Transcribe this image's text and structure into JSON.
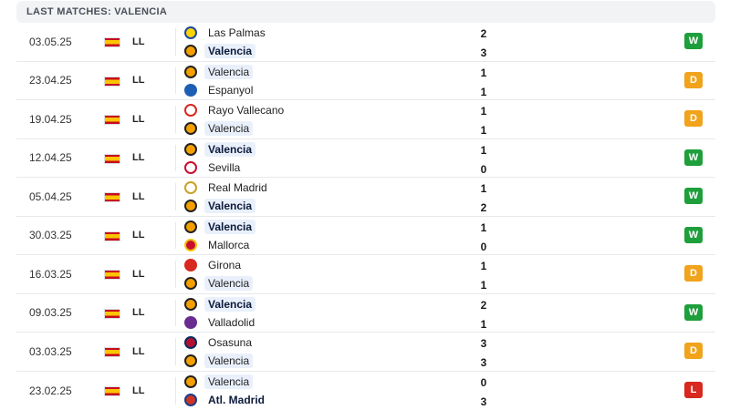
{
  "header": {
    "title": "LAST MATCHES: VALENCIA"
  },
  "colors": {
    "win": "#1e9f3c",
    "draw": "#f0a31b",
    "loss": "#d8281f",
    "highlight": "#e9f0fb"
  },
  "matches": [
    {
      "date": "03.05.25",
      "league": "LL",
      "home": {
        "name": "Las Palmas",
        "crest": "las-palmas-crest",
        "score": "2",
        "bold": false,
        "highlight": false
      },
      "away": {
        "name": "Valencia",
        "crest": "valencia-crest",
        "score": "3",
        "bold": true,
        "highlight": true
      },
      "result": "W"
    },
    {
      "date": "23.04.25",
      "league": "LL",
      "home": {
        "name": "Valencia",
        "crest": "valencia-crest",
        "score": "1",
        "bold": false,
        "highlight": true
      },
      "away": {
        "name": "Espanyol",
        "crest": "espanyol-crest",
        "score": "1",
        "bold": false,
        "highlight": false
      },
      "result": "D"
    },
    {
      "date": "19.04.25",
      "league": "LL",
      "home": {
        "name": "Rayo Vallecano",
        "crest": "rayo-vallecano-crest",
        "score": "1",
        "bold": false,
        "highlight": false
      },
      "away": {
        "name": "Valencia",
        "crest": "valencia-crest",
        "score": "1",
        "bold": false,
        "highlight": true
      },
      "result": "D"
    },
    {
      "date": "12.04.25",
      "league": "LL",
      "home": {
        "name": "Valencia",
        "crest": "valencia-crest",
        "score": "1",
        "bold": true,
        "highlight": true
      },
      "away": {
        "name": "Sevilla",
        "crest": "sevilla-crest",
        "score": "0",
        "bold": false,
        "highlight": false
      },
      "result": "W"
    },
    {
      "date": "05.04.25",
      "league": "LL",
      "home": {
        "name": "Real Madrid",
        "crest": "real-madrid-crest",
        "score": "1",
        "bold": false,
        "highlight": false
      },
      "away": {
        "name": "Valencia",
        "crest": "valencia-crest",
        "score": "2",
        "bold": true,
        "highlight": true
      },
      "result": "W"
    },
    {
      "date": "30.03.25",
      "league": "LL",
      "home": {
        "name": "Valencia",
        "crest": "valencia-crest",
        "score": "1",
        "bold": true,
        "highlight": true
      },
      "away": {
        "name": "Mallorca",
        "crest": "mallorca-crest",
        "score": "0",
        "bold": false,
        "highlight": false
      },
      "result": "W"
    },
    {
      "date": "16.03.25",
      "league": "LL",
      "home": {
        "name": "Girona",
        "crest": "girona-crest",
        "score": "1",
        "bold": false,
        "highlight": false
      },
      "away": {
        "name": "Valencia",
        "crest": "valencia-crest",
        "score": "1",
        "bold": false,
        "highlight": true
      },
      "result": "D"
    },
    {
      "date": "09.03.25",
      "league": "LL",
      "home": {
        "name": "Valencia",
        "crest": "valencia-crest",
        "score": "2",
        "bold": true,
        "highlight": true
      },
      "away": {
        "name": "Valladolid",
        "crest": "valladolid-crest",
        "score": "1",
        "bold": false,
        "highlight": false
      },
      "result": "W"
    },
    {
      "date": "03.03.25",
      "league": "LL",
      "home": {
        "name": "Osasuna",
        "crest": "osasuna-crest",
        "score": "3",
        "bold": false,
        "highlight": false
      },
      "away": {
        "name": "Valencia",
        "crest": "valencia-crest",
        "score": "3",
        "bold": false,
        "highlight": true
      },
      "result": "D"
    },
    {
      "date": "23.02.25",
      "league": "LL",
      "home": {
        "name": "Valencia",
        "crest": "valencia-crest",
        "score": "0",
        "bold": false,
        "highlight": true
      },
      "away": {
        "name": "Atl. Madrid",
        "crest": "atletico-madrid-crest",
        "score": "3",
        "bold": true,
        "highlight": false
      },
      "result": "L"
    }
  ]
}
